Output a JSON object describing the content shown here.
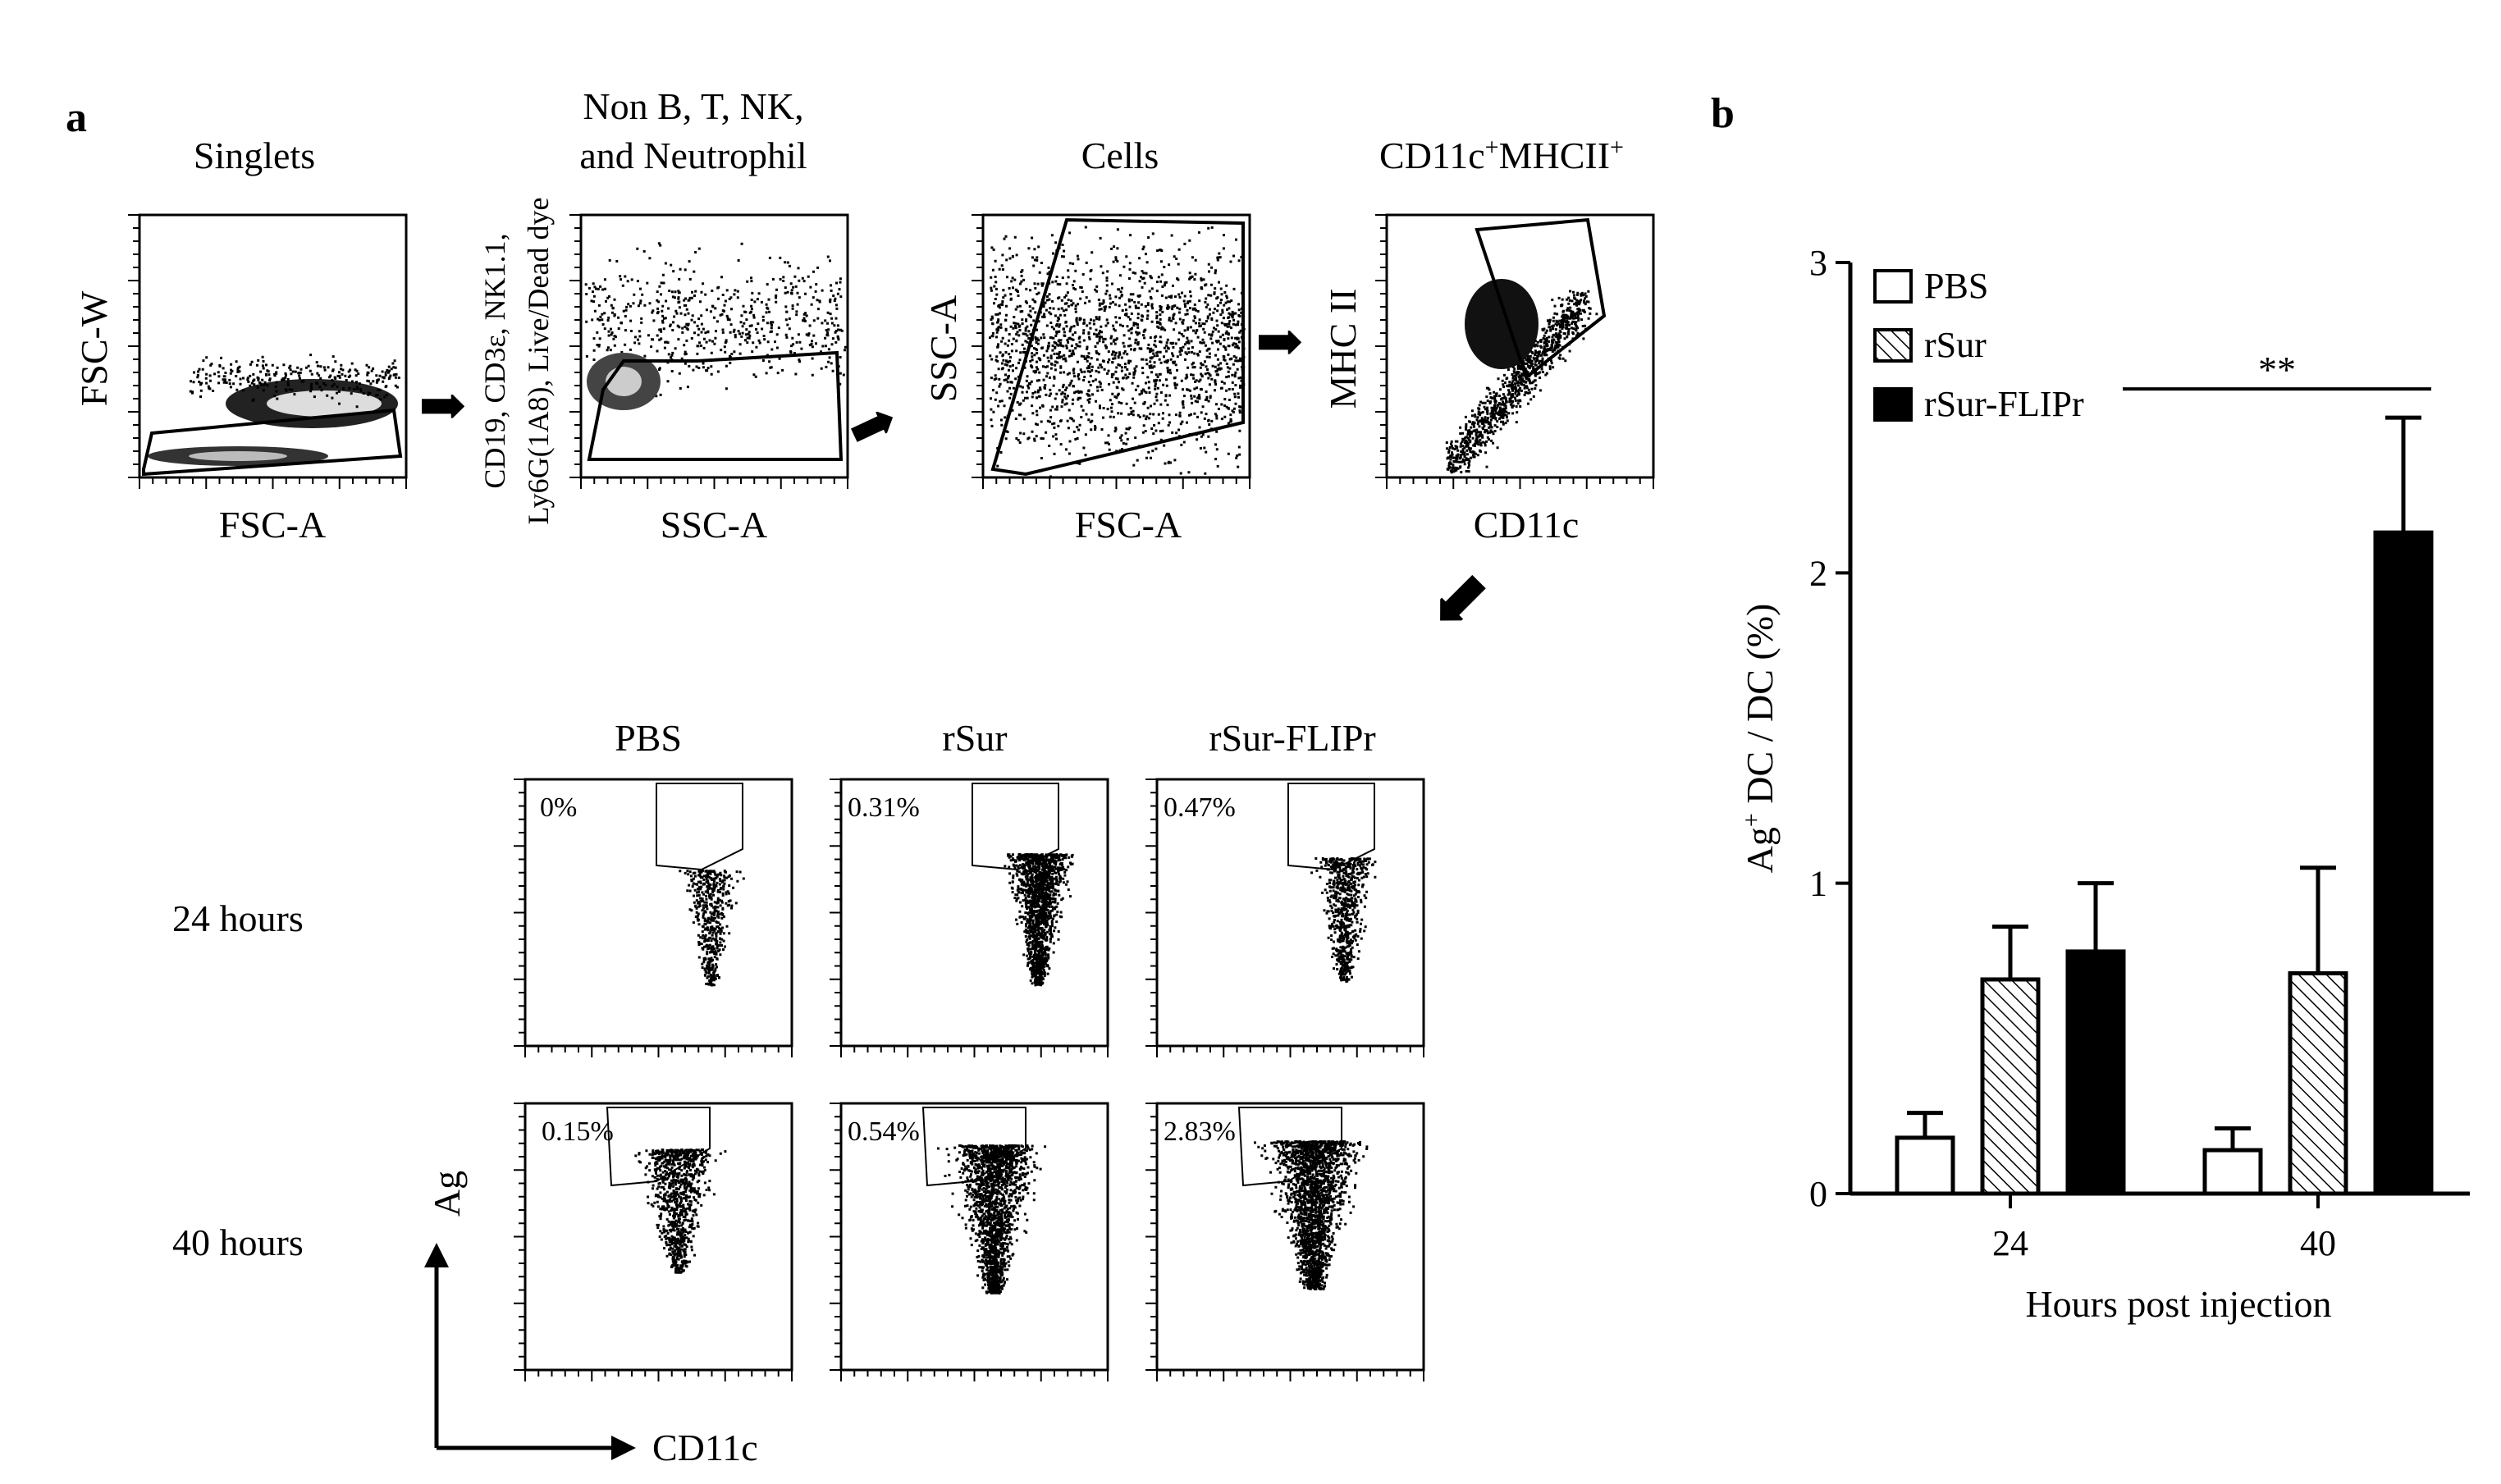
{
  "panel_a": {
    "letter": "a",
    "gating": [
      {
        "title": "Singlets",
        "ylabel": "FSC-W",
        "xlabel": "FSC-A"
      },
      {
        "title_line1": "Non B, T, NK,",
        "title_line2": "and Neutrophil",
        "ylabel_line1": "CD19, CD3ε, NK1.1,",
        "ylabel_line2": "Ly6G(1A8), Live/Dead dye",
        "xlabel": "SSC-A"
      },
      {
        "title": "Cells",
        "ylabel": "SSC-A",
        "xlabel": "FSC-A"
      },
      {
        "title_main": "CD11c",
        "title_sup1": "+",
        "title_mid": "MHCII",
        "title_sup2": "+",
        "ylabel": "MHC II",
        "xlabel": "CD11c"
      }
    ],
    "grid": {
      "columns": [
        "PBS",
        "rSur",
        "rSur-FLIPr"
      ],
      "rows": [
        {
          "label": "24 hours",
          "percents": [
            "0%",
            "0.31%",
            "0.47%"
          ]
        },
        {
          "label": "40 hours",
          "percents": [
            "0.15%",
            "0.54%",
            "2.83%"
          ]
        }
      ],
      "y_axis": "Ag",
      "x_axis": "CD11c"
    }
  },
  "panel_b": {
    "letter": "b",
    "chart_data": {
      "type": "bar",
      "categories": [
        "24",
        "40"
      ],
      "series": [
        {
          "name": "PBS",
          "values": [
            0.18,
            0.14
          ],
          "errors": [
            0.08,
            0.07
          ],
          "fill": "white"
        },
        {
          "name": "rSur",
          "values": [
            0.69,
            0.71
          ],
          "errors": [
            0.17,
            0.34
          ],
          "fill": "hatched"
        },
        {
          "name": "rSur-FLIPr",
          "values": [
            0.78,
            2.13
          ],
          "errors": [
            0.22,
            0.37
          ],
          "fill": "black"
        }
      ],
      "ylabel_main": "Ag",
      "ylabel_sup": "+",
      "ylabel_rest": " DC / DC (%)",
      "xlabel": "Hours post injection",
      "ylim": [
        0,
        3
      ],
      "yticks": [
        "0",
        "1",
        "2",
        "3"
      ],
      "significance": "**",
      "legend_position": "top-left"
    }
  }
}
